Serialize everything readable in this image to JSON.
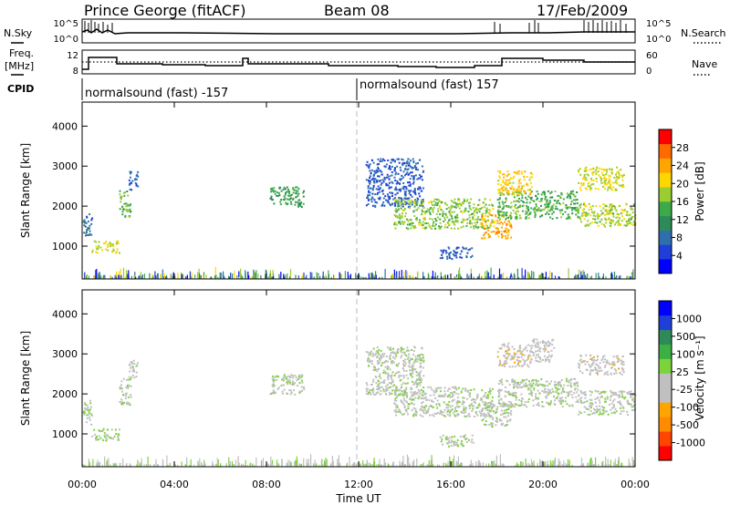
{
  "header": {
    "station": "Prince George (fitACF)",
    "beam": "Beam 08",
    "date": "17/Feb/2009"
  },
  "status_panel": {
    "nsky_label": "N.Sky",
    "nsky_ticks": [
      "10^5",
      "10^0"
    ],
    "nsearch_label": "N.Search",
    "nsearch_ticks": [
      "10^5",
      "10^0"
    ],
    "freq_label": "Freq.",
    "freq_unit": "[MHz]",
    "freq_ticks": [
      "12",
      "8"
    ],
    "nave_label": "Nave",
    "nave_ticks": [
      "60",
      "0"
    ],
    "cpid_label": "CPID",
    "cpid_segments": [
      "normalsound (fast) -157",
      "normalsound (fast) 157"
    ]
  },
  "chart_data": [
    {
      "type": "heatmap",
      "title": "",
      "xlabel": "Time UT",
      "ylabel": "Slant Range [km]",
      "xlim": [
        0,
        24
      ],
      "ylim": [
        180,
        4600
      ],
      "x_ticks": [
        "00:00",
        "04:00",
        "08:00",
        "12:00",
        "16:00",
        "20:00",
        "00:00"
      ],
      "y_ticks": [
        "1000",
        "2000",
        "3000",
        "4000"
      ],
      "colorbar": {
        "label": "Power [dB]",
        "ticks": [
          "28",
          "24",
          "20",
          "16",
          "12",
          "8",
          "4"
        ],
        "range": [
          0,
          30
        ],
        "colors": [
          "#0000ff",
          "#1f3fd8",
          "#2f6fb0",
          "#2e8b57",
          "#3daa4a",
          "#9acd32",
          "#ffd700",
          "#ffa500",
          "#ff6a00",
          "#ff0000"
        ]
      },
      "echo_regions": [
        {
          "t0": 0.0,
          "t1": 0.4,
          "r0": 1250,
          "r1": 1850,
          "level": 8
        },
        {
          "t0": 0.4,
          "t1": 1.6,
          "r0": 850,
          "r1": 1150,
          "level": 18
        },
        {
          "t0": 1.6,
          "t1": 2.1,
          "r0": 1750,
          "r1": 2400,
          "level": 14
        },
        {
          "t0": 2.0,
          "t1": 2.4,
          "r0": 2400,
          "r1": 2900,
          "level": 6
        },
        {
          "t0": 8.1,
          "t1": 9.6,
          "r0": 2000,
          "r1": 2500,
          "level": 12
        },
        {
          "t0": 12.3,
          "t1": 14.8,
          "r0": 2000,
          "r1": 3200,
          "level": 6
        },
        {
          "t0": 13.5,
          "t1": 17.8,
          "r0": 1450,
          "r1": 2200,
          "level": 16
        },
        {
          "t0": 15.5,
          "t1": 17.0,
          "r0": 700,
          "r1": 1000,
          "level": 6
        },
        {
          "t0": 17.3,
          "t1": 18.6,
          "r0": 1200,
          "r1": 1800,
          "level": 22
        },
        {
          "t0": 18.0,
          "t1": 21.5,
          "r0": 1700,
          "r1": 2400,
          "level": 14
        },
        {
          "t0": 18.0,
          "t1": 19.5,
          "r0": 2300,
          "r1": 2900,
          "level": 20
        },
        {
          "t0": 21.5,
          "t1": 24.0,
          "r0": 1500,
          "r1": 2100,
          "level": 17
        },
        {
          "t0": 21.5,
          "t1": 23.5,
          "r0": 2400,
          "r1": 3000,
          "level": 18
        }
      ]
    },
    {
      "type": "heatmap",
      "title": "",
      "xlabel": "Time UT",
      "ylabel": "Slant Range [km]",
      "xlim": [
        0,
        24
      ],
      "ylim": [
        180,
        4600
      ],
      "x_ticks": [
        "00:00",
        "04:00",
        "08:00",
        "12:00",
        "16:00",
        "20:00",
        "00:00"
      ],
      "y_ticks": [
        "1000",
        "2000",
        "3000",
        "4000"
      ],
      "colorbar": {
        "label": "Velocity [m s⁻¹]",
        "ticks": [
          "1000",
          "500",
          "100",
          "25",
          "-25",
          "-100",
          "-500",
          "-1000"
        ],
        "range": [
          -1000,
          1000
        ],
        "colors": [
          "#ff0000",
          "#ff4500",
          "#ff8c00",
          "#ffa500",
          "#c0c0c0",
          "#c0c0c0",
          "#7cd43c",
          "#3cb043",
          "#2e8b57",
          "#1f3fd8",
          "#0000ff"
        ]
      },
      "echo_regions": [
        {
          "t0": 0.0,
          "t1": 0.4,
          "r0": 1250,
          "r1": 1850,
          "level": 0
        },
        {
          "t0": 0.4,
          "t1": 1.6,
          "r0": 850,
          "r1": 1150,
          "level": 80
        },
        {
          "t0": 1.6,
          "t1": 2.1,
          "r0": 1750,
          "r1": 2400,
          "level": 0
        },
        {
          "t0": 2.0,
          "t1": 2.4,
          "r0": 2400,
          "r1": 2900,
          "level": 0
        },
        {
          "t0": 8.1,
          "t1": 9.6,
          "r0": 2000,
          "r1": 2500,
          "level": 0
        },
        {
          "t0": 12.3,
          "t1": 14.8,
          "r0": 2000,
          "r1": 3200,
          "level": 0
        },
        {
          "t0": 13.5,
          "t1": 17.8,
          "r0": 1450,
          "r1": 2200,
          "level": 0
        },
        {
          "t0": 15.5,
          "t1": 17.0,
          "r0": 700,
          "r1": 1000,
          "level": 0
        },
        {
          "t0": 17.3,
          "t1": 18.6,
          "r0": 1200,
          "r1": 1800,
          "level": 0
        },
        {
          "t0": 18.0,
          "t1": 21.5,
          "r0": 1700,
          "r1": 2400,
          "level": 0
        },
        {
          "t0": 18.0,
          "t1": 19.5,
          "r0": 2700,
          "r1": 3300,
          "level": -150
        },
        {
          "t0": 19.5,
          "t1": 20.5,
          "r0": 2800,
          "r1": 3400,
          "level": -100
        },
        {
          "t0": 21.5,
          "t1": 24.0,
          "r0": 1500,
          "r1": 2100,
          "level": 0
        },
        {
          "t0": 21.5,
          "t1": 23.5,
          "r0": 2500,
          "r1": 3000,
          "level": -120
        }
      ]
    }
  ]
}
